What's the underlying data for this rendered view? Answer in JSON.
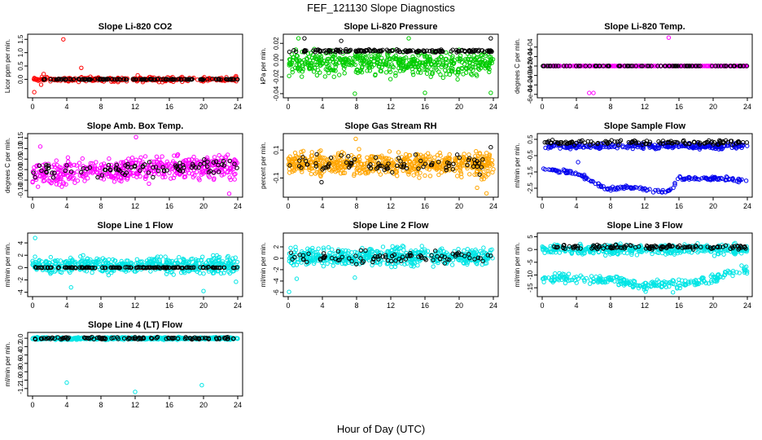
{
  "figure": {
    "title": "FEF_121130  Slope Diagnostics",
    "xlabel": "Hour of Day (UTC)"
  },
  "chart_data": [
    {
      "type": "scatter",
      "title": "Slope Li-820 CO2",
      "ylabel": "Licor ppm per min.",
      "xlim": [
        0,
        24
      ],
      "ylim": [
        -0.6,
        1.6
      ],
      "yticks": [
        0,
        0.5,
        1,
        1.5
      ],
      "ytick_labels": [
        "0.0",
        "0.5",
        "1.0",
        "1.5"
      ],
      "xticks": [
        0,
        4,
        8,
        12,
        16,
        20,
        24
      ],
      "series": [
        {
          "color": "#ff0000",
          "pattern": "band",
          "center": 0.0,
          "spread": 0.06,
          "n": 260,
          "outliers": [
            [
              3.6,
              1.5
            ],
            [
              5.7,
              0.43
            ],
            [
              0.2,
              -0.48
            ],
            [
              1.3,
              0.2
            ],
            [
              23.8,
              0.12
            ],
            [
              12.3,
              0.15
            ],
            [
              1.0,
              -0.2
            ]
          ]
        },
        {
          "color": "#000000",
          "pattern": "band",
          "center": 0.0,
          "spread": 0.01,
          "n": 140,
          "outliers": []
        }
      ]
    },
    {
      "type": "scatter",
      "title": "Slope Li-820 Pressure",
      "ylabel": "kPa per min.",
      "xlim": [
        0,
        24
      ],
      "ylim": [
        -0.042,
        0.028
      ],
      "yticks": [
        -0.04,
        -0.02,
        0.0,
        0.02
      ],
      "ytick_labels": [
        "-0.04",
        "-0.02",
        "0.00",
        "0.02"
      ],
      "xticks": [
        0,
        4,
        8,
        12,
        16,
        20,
        24
      ],
      "series": [
        {
          "color": "#00cc00",
          "pattern": "band",
          "center": -0.004,
          "spread": 0.01,
          "n": 520,
          "outliers": [
            [
              1.2,
              0.026
            ],
            [
              7.8,
              -0.04
            ],
            [
              16.0,
              -0.039
            ],
            [
              23.7,
              -0.039
            ],
            [
              14.1,
              0.026
            ]
          ]
        },
        {
          "color": "#000000",
          "pattern": "band",
          "center": 0.011,
          "spread": 0.001,
          "n": 160,
          "outliers": [
            [
              1.9,
              0.026
            ],
            [
              6.2,
              0.023
            ],
            [
              23.7,
              0.026
            ]
          ]
        }
      ]
    },
    {
      "type": "scatter",
      "title": "Slope Li-820 Temp.",
      "ylabel": "degrees C per min.",
      "xlim": [
        0,
        24
      ],
      "ylim": [
        -0.00062,
        0.00062
      ],
      "yticks": [
        -0.0006,
        -0.0004,
        -0.0002,
        0.0,
        0.0002,
        0.0004
      ],
      "ytick_labels": [
        "-6e-04",
        "-4e-04",
        "-2e-04",
        "0e+00",
        "2e-04",
        "4e-04"
      ],
      "xticks": [
        0,
        4,
        8,
        12,
        16,
        20,
        24
      ],
      "series": [
        {
          "color": "#ff00ff",
          "pattern": "band",
          "center": 0.0,
          "spread": 0.0,
          "n": 300,
          "outliers": [
            [
              14.8,
              0.0006
            ],
            [
              5.5,
              -0.00057
            ],
            [
              6.0,
              -0.00057
            ]
          ]
        },
        {
          "color": "#000000",
          "pattern": "band",
          "center": 0.0,
          "spread": 0.0,
          "n": 90,
          "outliers": []
        }
      ]
    },
    {
      "type": "scatter",
      "title": "Slope Amb. Box Temp.",
      "ylabel": "degrees C per min.",
      "xlim": [
        0,
        24
      ],
      "ylim": [
        -0.12,
        0.16
      ],
      "yticks": [
        -0.1,
        -0.05,
        0.0,
        0.05,
        0.1,
        0.15
      ],
      "ytick_labels": [
        "-0.10",
        "-0.05",
        "0.00",
        "0.05",
        "0.10",
        "0.15"
      ],
      "xticks": [
        0,
        4,
        8,
        12,
        16,
        20,
        24
      ],
      "series": [
        {
          "color": "#ff00ff",
          "pattern": "trend",
          "start": -0.02,
          "end": 0.02,
          "spread": 0.04,
          "n": 480,
          "outliers": [
            [
              12.1,
              0.155
            ],
            [
              23.0,
              -0.115
            ],
            [
              0.9,
              0.11
            ]
          ]
        },
        {
          "color": "#000000",
          "pattern": "trend",
          "start": -0.01,
          "end": 0.02,
          "spread": 0.025,
          "n": 90,
          "outliers": []
        }
      ]
    },
    {
      "type": "scatter",
      "title": "Slope Gas Stream RH",
      "ylabel": "percent per min.",
      "xlim": [
        0,
        24
      ],
      "ylim": [
        -0.22,
        0.2
      ],
      "yticks": [
        -0.1,
        0.1
      ],
      "ytick_labels": [
        "-0.1",
        "0.1"
      ],
      "xticks": [
        0,
        4,
        8,
        12,
        16,
        20,
        24
      ],
      "series": [
        {
          "color": "#ffa500",
          "pattern": "band",
          "center": 0.0,
          "spread": 0.055,
          "n": 620,
          "outliers": [
            [
              7.9,
              0.18
            ],
            [
              23.2,
              -0.21
            ],
            [
              22.1,
              -0.17
            ]
          ]
        },
        {
          "color": "#000000",
          "pattern": "band",
          "center": 0.0,
          "spread": 0.045,
          "n": 80,
          "outliers": [
            [
              3.9,
              -0.13
            ],
            [
              23.7,
              0.12
            ]
          ]
        }
      ]
    },
    {
      "type": "scatter",
      "title": "Slope Sample Flow",
      "ylabel": "ml/min per min.",
      "xlim": [
        0,
        24
      ],
      "ylim": [
        -2.9,
        0.7
      ],
      "yticks": [
        -2.5,
        -1.5,
        -0.5,
        0.5
      ],
      "ytick_labels": [
        "-2.5",
        "-1.5",
        "-0.5",
        "0.5"
      ],
      "xticks": [
        0,
        4,
        8,
        12,
        16,
        20,
        24
      ],
      "series": [
        {
          "color": "#0000ee",
          "pattern": "band",
          "center": 0.08,
          "spread": 0.12,
          "n": 260,
          "outliers": []
        },
        {
          "color": "#0000ee",
          "pattern": "path",
          "path": [
            [
              0.5,
              -1.35
            ],
            [
              4,
              -1.6
            ],
            [
              6,
              -2.1
            ],
            [
              7.5,
              -2.55
            ],
            [
              10,
              -2.4
            ],
            [
              14,
              -2.75
            ],
            [
              15.2,
              -2.55
            ],
            [
              16,
              -1.8
            ],
            [
              16.5,
              -1.9
            ],
            [
              20,
              -1.9
            ],
            [
              24,
              -2.0
            ]
          ],
          "spread": 0.08,
          "n": 180,
          "outliers": [
            [
              4.2,
              -0.9
            ]
          ]
        },
        {
          "color": "#000000",
          "pattern": "band",
          "center": 0.3,
          "spread": 0.1,
          "n": 120,
          "outliers": []
        }
      ]
    },
    {
      "type": "scatter",
      "title": "Slope Line 1 Flow",
      "ylabel": "ml/min per min.",
      "xlim": [
        0,
        24
      ],
      "ylim": [
        -4.3,
        5.2
      ],
      "yticks": [
        -4,
        -2,
        0,
        2,
        4
      ],
      "ytick_labels": [
        "-4",
        "-2",
        "0",
        "2",
        "4"
      ],
      "xticks": [
        0,
        4,
        8,
        12,
        16,
        20,
        24
      ],
      "series": [
        {
          "color": "#00e5e5",
          "pattern": "band",
          "center": 0.4,
          "spread": 0.9,
          "n": 520,
          "outliers": [
            [
              0.3,
              4.8
            ],
            [
              23.8,
              -2.3
            ],
            [
              20.0,
              -3.8
            ],
            [
              4.5,
              -3.2
            ]
          ]
        },
        {
          "color": "#000000",
          "pattern": "band",
          "center": 0.0,
          "spread": 0.05,
          "n": 140,
          "outliers": []
        }
      ]
    },
    {
      "type": "scatter",
      "title": "Slope Line 2 Flow",
      "ylabel": "ml/min per min.",
      "xlim": [
        0,
        24
      ],
      "ylim": [
        -6.3,
        4.0
      ],
      "yticks": [
        -6,
        -4,
        -2,
        0,
        2
      ],
      "ytick_labels": [
        "-6",
        "-4",
        "-2",
        "0",
        "2"
      ],
      "xticks": [
        0,
        4,
        8,
        12,
        16,
        20,
        24
      ],
      "series": [
        {
          "color": "#00e5e5",
          "pattern": "band",
          "center": 0.3,
          "spread": 1.1,
          "n": 520,
          "outliers": [
            [
              0.1,
              -5.9
            ],
            [
              1.0,
              -3.6
            ],
            [
              7.8,
              -3.4
            ]
          ]
        },
        {
          "color": "#000000",
          "pattern": "band",
          "center": 0.2,
          "spread": 0.7,
          "n": 90,
          "outliers": []
        }
      ]
    },
    {
      "type": "scatter",
      "title": "Slope Line 3 Flow",
      "ylabel": "ml/min per min.",
      "xlim": [
        0,
        24
      ],
      "ylim": [
        -17.5,
        5.5
      ],
      "yticks": [
        -15,
        -10,
        -5,
        0,
        5
      ],
      "ytick_labels": [
        "-15",
        "-10",
        "-5",
        "0",
        "5"
      ],
      "xticks": [
        0,
        4,
        8,
        12,
        16,
        20,
        24
      ],
      "series": [
        {
          "color": "#00e5e5",
          "pattern": "band",
          "center": 0.0,
          "spread": 1.3,
          "n": 420,
          "outliers": []
        },
        {
          "color": "#00e5e5",
          "pattern": "path",
          "path": [
            [
              1,
              -11
            ],
            [
              5,
              -11.5
            ],
            [
              9,
              -12.5
            ],
            [
              12,
              -14
            ],
            [
              16,
              -13.5
            ],
            [
              20,
              -11.5
            ],
            [
              23,
              -8
            ]
          ],
          "spread": 1.2,
          "n": 260,
          "outliers": [
            [
              12.1,
              -16.5
            ],
            [
              15.3,
              -16.8
            ]
          ]
        },
        {
          "color": "#000000",
          "pattern": "band",
          "center": 1.0,
          "spread": 0.6,
          "n": 120,
          "outliers": []
        }
      ]
    },
    {
      "type": "scatter",
      "title": "Slope Line 4 (LT) Flow",
      "ylabel": "ml/min per min.",
      "xlim": [
        0,
        24
      ],
      "ylim": [
        -1.32,
        0.08
      ],
      "yticks": [
        -1.2,
        -1.0,
        -0.8,
        -0.6,
        -0.4,
        -0.2,
        0.0
      ],
      "ytick_labels": [
        "-1.2",
        "-1.0",
        "-0.8",
        "-0.6",
        "-0.4",
        "-0.2",
        "0.0"
      ],
      "xticks": [
        0,
        4,
        8,
        12,
        16,
        20,
        24
      ],
      "series": [
        {
          "color": "#00e5e5",
          "pattern": "band",
          "center": -0.005,
          "spread": 0.02,
          "n": 520,
          "outliers": [
            [
              4.0,
              -1.06
            ],
            [
              12.0,
              -1.28
            ],
            [
              19.8,
              -1.12
            ]
          ]
        },
        {
          "color": "#000000",
          "pattern": "band",
          "center": 0.0,
          "spread": 0.02,
          "n": 110,
          "outliers": []
        }
      ]
    }
  ]
}
